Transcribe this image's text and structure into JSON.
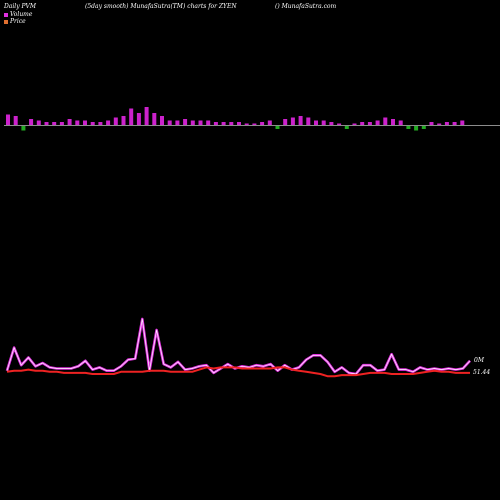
{
  "header": {
    "left": "Daily PVM",
    "center": "(5day smooth) MunafaSutra(TM) charts for ZYEN",
    "right": "() MunafaSutra.com"
  },
  "legend": {
    "volume_label": "Volume",
    "price_label": "Price",
    "volume_color": "#e030e0",
    "price_color": "#e07030"
  },
  "right_labels": {
    "volume_value": "0M",
    "price_value": "51.44"
  },
  "chart_data": [
    {
      "type": "bar",
      "title": "Volume",
      "positive_color": "#cc22cc",
      "negative_color": "#22aa22",
      "values": [
        7,
        6,
        -3,
        4,
        3,
        2,
        2,
        2,
        4,
        3,
        3,
        2,
        2,
        3,
        5,
        6,
        11,
        8,
        12,
        8,
        6,
        3,
        3,
        4,
        3,
        3,
        3,
        2,
        2,
        2,
        2,
        1,
        1,
        2,
        3,
        -2,
        4,
        5,
        6,
        5,
        3,
        3,
        2,
        1,
        -2,
        1,
        2,
        2,
        3,
        5,
        4,
        3,
        -2,
        -3,
        -2,
        2,
        1,
        2,
        2,
        3
      ]
    },
    {
      "type": "line",
      "series": [
        {
          "color": "#e030e0",
          "values": [
            3,
            24,
            8,
            15,
            7,
            10,
            6,
            5,
            5,
            5,
            7,
            12,
            4,
            6,
            3,
            3,
            7,
            13,
            14,
            50,
            3,
            40,
            9,
            6,
            11,
            4,
            5,
            7,
            8,
            1,
            5,
            9,
            5,
            7,
            6,
            8,
            7,
            9,
            3,
            8,
            4,
            6,
            13,
            17,
            17,
            11,
            2,
            6,
            1,
            0,
            8,
            8,
            3,
            4,
            18,
            4,
            4,
            2,
            6,
            4,
            5,
            4,
            5,
            4,
            5,
            12
          ]
        },
        {
          "color": "#ee2222",
          "values": [
            2,
            3,
            3,
            4,
            3,
            3,
            2,
            2,
            1,
            1,
            1,
            1,
            0,
            0,
            0,
            0,
            2,
            2,
            2,
            2,
            3,
            3,
            3,
            2,
            2,
            2,
            2,
            4,
            6,
            5,
            6,
            6,
            6,
            5,
            5,
            5,
            5,
            5,
            6,
            6,
            4,
            3,
            2,
            1,
            0,
            -2,
            -2,
            -1,
            -1,
            -1,
            0,
            1,
            1,
            1,
            0,
            0,
            0,
            0,
            1,
            2,
            3,
            2,
            2,
            1,
            1,
            1
          ]
        }
      ]
    }
  ]
}
